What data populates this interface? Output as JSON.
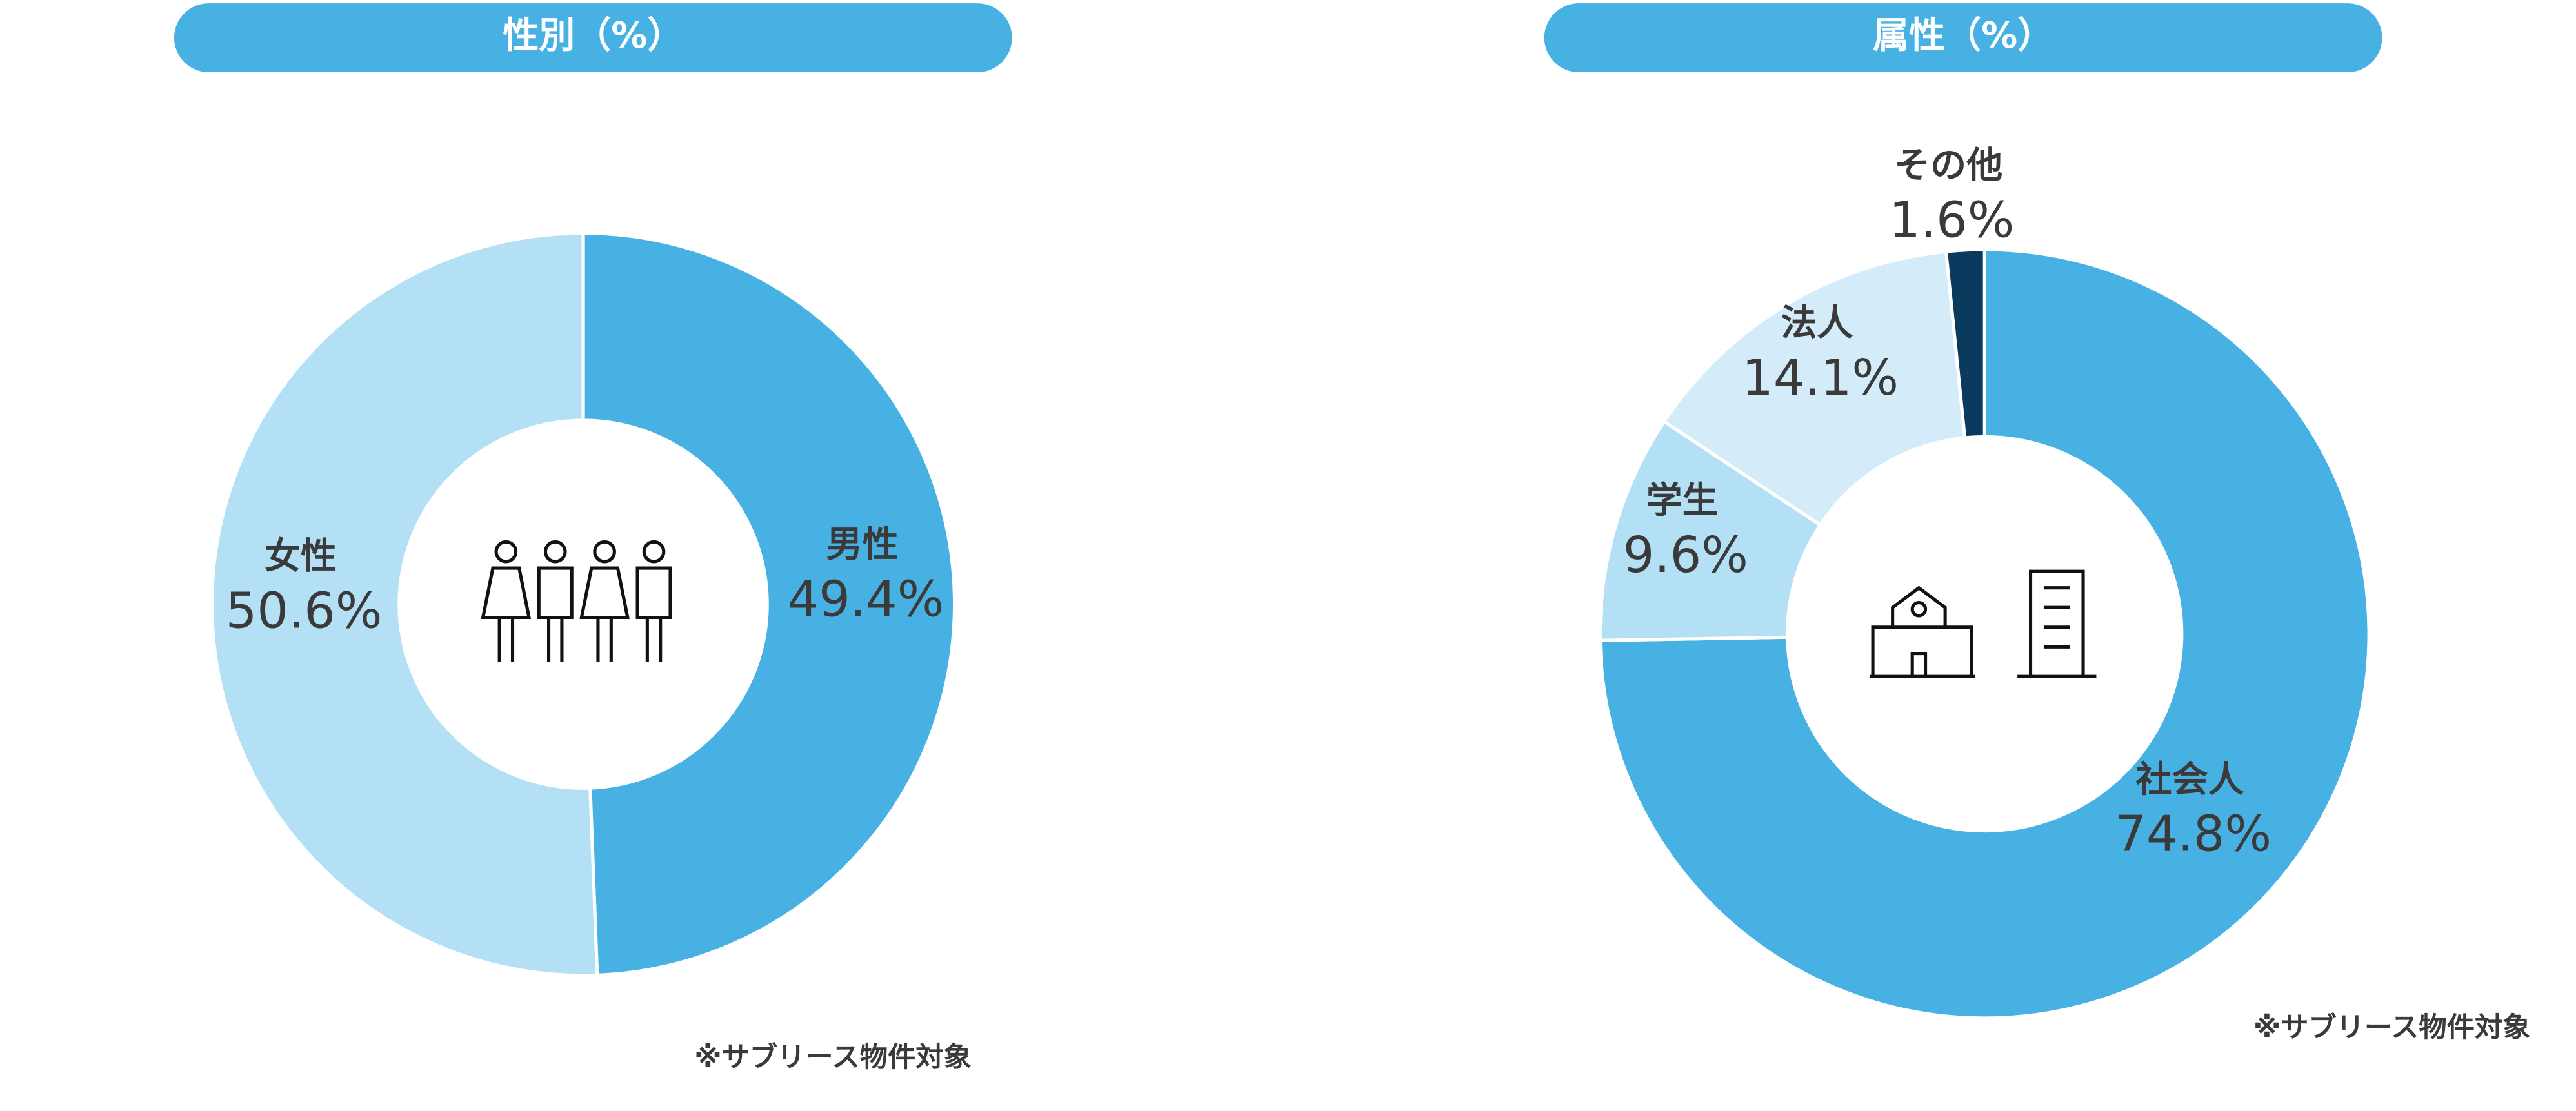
{
  "chart_data": [
    {
      "type": "pie",
      "title": "性別（%）",
      "categories": [
        "男性",
        "女性"
      ],
      "values": [
        49.4,
        50.6
      ],
      "value_labels": [
        "49.4%",
        "50.6%"
      ],
      "colors": [
        "#48b1e4",
        "#b3e0f5"
      ],
      "note": "※サブリース物件対象"
    },
    {
      "type": "pie",
      "title": "属性（%）",
      "categories": [
        "社会人",
        "学生",
        "法人",
        "その他"
      ],
      "values": [
        74.8,
        9.6,
        14.1,
        1.6
      ],
      "value_labels": [
        "74.8%",
        "9.6%",
        "14.1%",
        "1.6%"
      ],
      "colors": [
        "#48b1e4",
        "#b3e0f5",
        "#d4ecf9",
        "#0b3a5f"
      ],
      "note": "※サブリース物件対象"
    }
  ]
}
